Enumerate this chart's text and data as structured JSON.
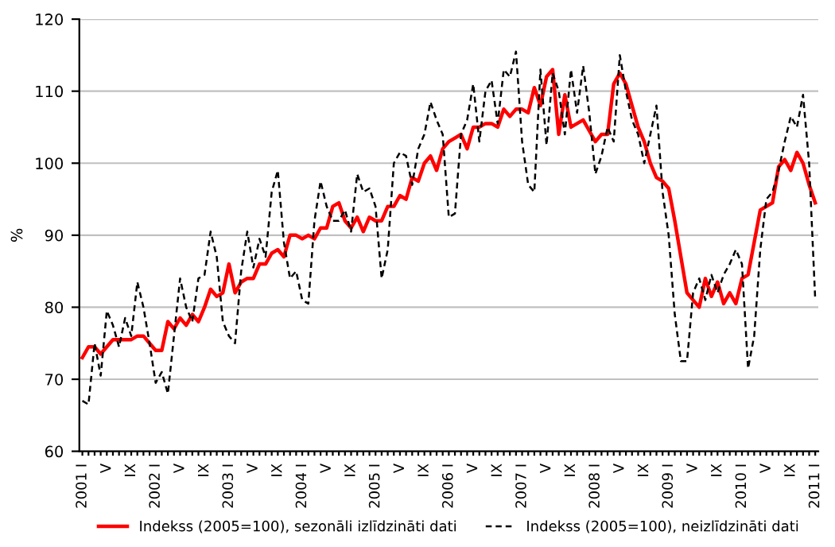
{
  "chart_data": {
    "type": "line",
    "ylabel": "%",
    "ylim": [
      60,
      120
    ],
    "yticks": [
      60,
      70,
      80,
      90,
      100,
      110,
      120
    ],
    "grid": "y",
    "legend": "bottom",
    "categories": [
      "2001 I",
      null,
      null,
      null,
      "V",
      null,
      null,
      null,
      "IX",
      null,
      null,
      null,
      "2002 I",
      null,
      null,
      null,
      "V",
      null,
      null,
      null,
      "IX",
      null,
      null,
      null,
      "2003 I",
      null,
      null,
      null,
      "V",
      null,
      null,
      null,
      "IX",
      null,
      null,
      null,
      "2004 I",
      null,
      null,
      null,
      "V",
      null,
      null,
      null,
      "IX",
      null,
      null,
      null,
      "2005 I",
      null,
      null,
      null,
      "V",
      null,
      null,
      null,
      "IX",
      null,
      null,
      null,
      "2006 I",
      null,
      null,
      null,
      "V",
      null,
      null,
      null,
      "IX",
      null,
      null,
      null,
      "2007 I",
      null,
      null,
      null,
      "V",
      null,
      null,
      null,
      "IX",
      null,
      null,
      null,
      "2008 I",
      null,
      null,
      null,
      "V",
      null,
      null,
      null,
      "IX",
      null,
      null,
      null,
      "2009 I",
      null,
      null,
      null,
      "V",
      null,
      null,
      null,
      "IX",
      null,
      null,
      null,
      "2010 I",
      null,
      null,
      null,
      "V",
      null,
      null,
      null,
      "IX",
      null,
      null,
      null,
      "2011 I"
    ],
    "series": [
      {
        "name": "Indekss (2005=100), sezonāli izlīdzināti dati",
        "color": "#ff0000",
        "line_style": "solid",
        "values": [
          73,
          74.5,
          74.5,
          73.5,
          74.5,
          75.5,
          75.5,
          75.5,
          75.5,
          76,
          76,
          75,
          74,
          74,
          78,
          77,
          78.5,
          77.5,
          79,
          78,
          80,
          82.5,
          81.5,
          82,
          86,
          82,
          83.5,
          84,
          84,
          86,
          86,
          87.5,
          88,
          87,
          90,
          90,
          89.5,
          90,
          89.5,
          91,
          91,
          94,
          94.5,
          92,
          91,
          92.5,
          90.5,
          92.5,
          92,
          92,
          94,
          94,
          95.5,
          95,
          98,
          97.5,
          100,
          101,
          99,
          102,
          103,
          103.5,
          104,
          102,
          105,
          105,
          105.5,
          105.5,
          105,
          107.5,
          106.5,
          107.5,
          107.5,
          107,
          110.5,
          108,
          112,
          113,
          104,
          109.5,
          105,
          105.5,
          106,
          104.5,
          103,
          104,
          104,
          111,
          112.5,
          111,
          108,
          105,
          103,
          100,
          98,
          97.5,
          96.5,
          92,
          87,
          82,
          81,
          80,
          84,
          81.5,
          83.5,
          80.5,
          82,
          80.5,
          84,
          84.5,
          89,
          93.5,
          94,
          94.5,
          99.5,
          100.5,
          99,
          101.5,
          100,
          97,
          94.5
        ]
      },
      {
        "name": "Indekss (2005=100), neizlīdzināti dati",
        "color": "#000000",
        "line_style": "dashed",
        "values": [
          67,
          66.5,
          75,
          70.5,
          79.5,
          77.5,
          74.5,
          78.5,
          76,
          83.5,
          80,
          75,
          69.5,
          71,
          68,
          76,
          84,
          80,
          78,
          84,
          84.5,
          90.5,
          87,
          78,
          76,
          75,
          85,
          90.5,
          85.5,
          89.5,
          87,
          96,
          99,
          89,
          84,
          85,
          81,
          80.5,
          92,
          97.5,
          94,
          92,
          92,
          93.5,
          90.5,
          98.5,
          96,
          96.5,
          94,
          84,
          88,
          100,
          101.5,
          101,
          97,
          102,
          104,
          108.5,
          106,
          104,
          92.5,
          93,
          104,
          106,
          111,
          103,
          110,
          111.5,
          105.5,
          113,
          112,
          115.5,
          103,
          97,
          96,
          113,
          102.5,
          112.5,
          110,
          104,
          113,
          107,
          113.5,
          107,
          98.5,
          101,
          105,
          103,
          115,
          110,
          106,
          104,
          100,
          104,
          108,
          96,
          90,
          79,
          72.5,
          72.5,
          82,
          84,
          81,
          84.5,
          82,
          84.5,
          86,
          88,
          86,
          71.5,
          76,
          88,
          95,
          96,
          99,
          103,
          106.5,
          105,
          109.5,
          100,
          81
        ]
      }
    ]
  }
}
